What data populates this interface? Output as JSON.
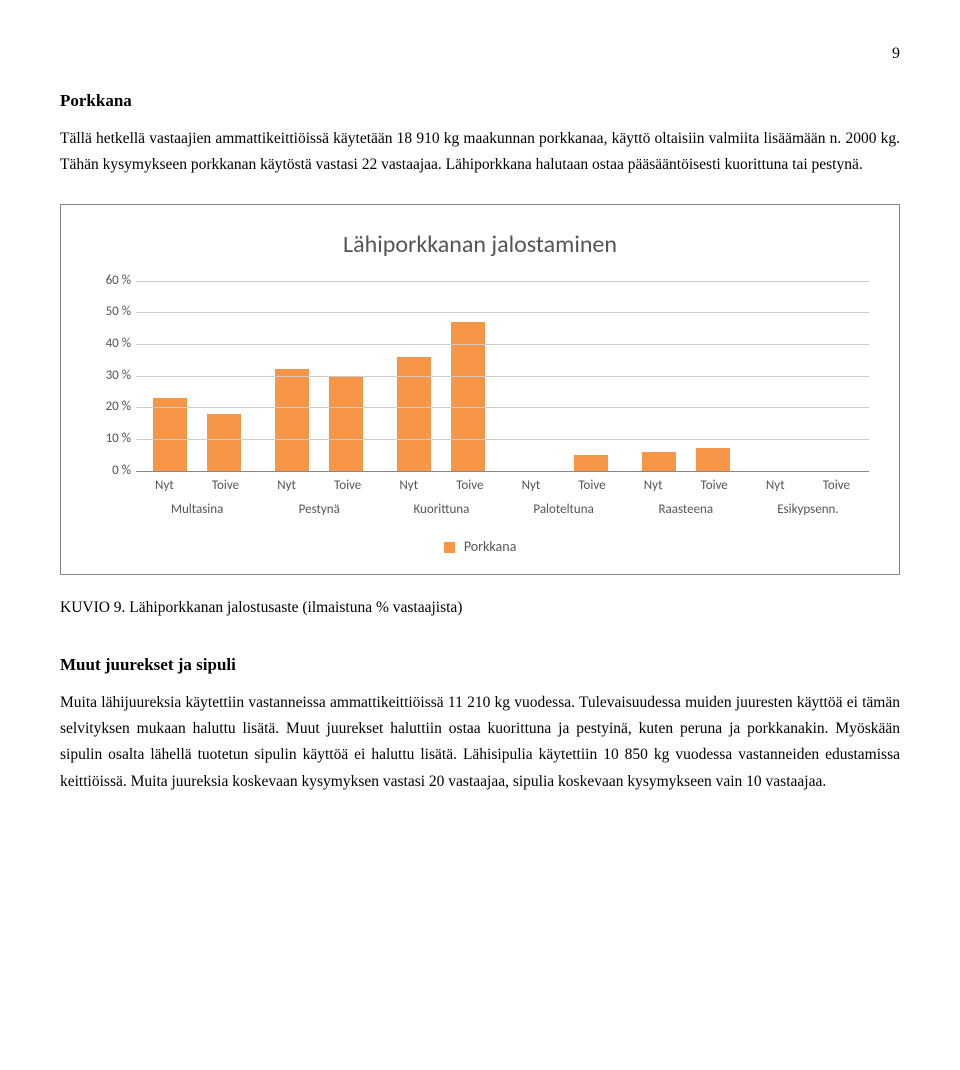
{
  "page_number": "9",
  "heading1": "Porkkana",
  "para1": "Tällä hetkellä vastaajien ammattikeittiöissä käytetään 18 910 kg maakunnan porkkanaa, käyttö oltaisiin valmiita lisäämään n. 2000 kg. Tähän kysymykseen porkkanan käytöstä vastasi 22 vastaajaa. Lähiporkkana halutaan ostaa pääsääntöisesti kuorittuna tai pestynä.",
  "chart": {
    "title": "Lähiporkkanan jalostaminen",
    "type": "bar",
    "bar_color": "#f79646",
    "gridline_color": "#cccccc",
    "text_color": "#595959",
    "y_ticks": [
      "0 %",
      "10 %",
      "20 %",
      "30 %",
      "40 %",
      "50 %",
      "60 %"
    ],
    "y_max": 60,
    "sublabels": [
      "Nyt",
      "Toive"
    ],
    "categories": [
      "Multasina",
      "Pestynä",
      "Kuorittuna",
      "Paloteltuna",
      "Raasteena",
      "Esikypsenn."
    ],
    "values": [
      [
        23,
        18
      ],
      [
        32,
        30
      ],
      [
        36,
        47
      ],
      [
        0,
        5
      ],
      [
        6,
        7
      ],
      [
        0,
        0
      ]
    ],
    "legend_label": "Porkkana"
  },
  "caption": "KUVIO 9. Lähiporkkanan jalostusaste (ilmaistuna % vastaajista)",
  "heading2": "Muut juurekset ja sipuli",
  "para2": "Muita lähijuureksia käytettiin vastanneissa ammattikeittiöissä 11 210 kg vuodessa. Tulevaisuudessa muiden juuresten käyttöä ei tämän selvityksen mukaan haluttu lisätä. Muut juurekset haluttiin ostaa kuorittuna ja pestyinä, kuten peruna ja porkkanakin. Myöskään sipulin osalta lähellä tuotetun sipulin käyttöä ei haluttu lisätä. Lähisipulia käytettiin 10 850 kg vuodessa vastanneiden edustamissa keittiöissä. Muita juureksia koskevaan kysymyksen vastasi 20 vastaajaa, sipulia koskevaan kysymykseen vain 10 vastaajaa."
}
